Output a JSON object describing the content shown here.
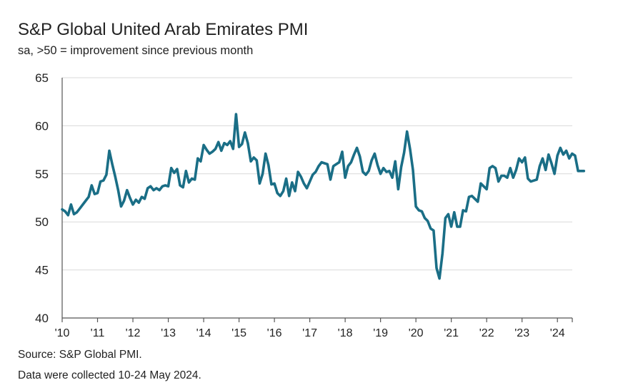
{
  "title": "S&P Global United Arab Emirates PMI",
  "subtitle": "sa, >50 = improvement since previous month",
  "footer": {
    "source": "Source: S&P Global PMI.",
    "note": "Data were collected 10-24 May 2024."
  },
  "colors": {
    "line": "#1a6e86",
    "grid": "#d9d9d9",
    "axis": "#555555"
  },
  "chart_data": {
    "type": "line",
    "title": "S&P Global United Arab Emirates PMI",
    "subtitle": "sa, >50 = improvement since previous month",
    "xlabel": "",
    "ylabel": "",
    "ylim": [
      40,
      65
    ],
    "yticks": [
      40,
      45,
      50,
      55,
      60,
      65
    ],
    "xticks": [
      {
        "label": "'10",
        "x": 2010
      },
      {
        "label": "'11",
        "x": 2011
      },
      {
        "label": "'12",
        "x": 2012
      },
      {
        "label": "'13",
        "x": 2013
      },
      {
        "label": "'14",
        "x": 2014
      },
      {
        "label": "'15",
        "x": 2015
      },
      {
        "label": "'16",
        "x": 2016
      },
      {
        "label": "'17",
        "x": 2017
      },
      {
        "label": "'18",
        "x": 2018
      },
      {
        "label": "'19",
        "x": 2019
      },
      {
        "label": "'20",
        "x": 2020
      },
      {
        "label": "'21",
        "x": 2021
      },
      {
        "label": "'22",
        "x": 2022
      },
      {
        "label": "'23",
        "x": 2023
      },
      {
        "label": "'24",
        "x": 2024
      }
    ],
    "xlim": [
      2010,
      2024.42
    ],
    "grid": true,
    "series": [
      {
        "name": "UAE PMI",
        "start": 2010.0,
        "step": 0.08333,
        "values": [
          51.3,
          51.1,
          50.7,
          51.8,
          50.8,
          51.0,
          51.4,
          51.8,
          52.2,
          52.6,
          53.8,
          52.9,
          53.0,
          54.2,
          54.3,
          54.9,
          57.4,
          56.0,
          54.7,
          53.3,
          51.6,
          52.2,
          53.3,
          52.5,
          51.8,
          52.3,
          52.0,
          52.6,
          52.4,
          53.5,
          53.7,
          53.3,
          53.5,
          53.3,
          53.7,
          53.8,
          53.7,
          55.6,
          55.1,
          55.5,
          53.8,
          53.6,
          55.3,
          54.1,
          54.5,
          54.4,
          56.6,
          56.3,
          58.0,
          57.5,
          57.1,
          57.3,
          57.6,
          58.3,
          57.4,
          58.2,
          58.0,
          58.4,
          57.6,
          61.2,
          57.8,
          58.1,
          59.3,
          58.2,
          56.3,
          56.7,
          56.4,
          54.0,
          55.0,
          57.1,
          55.9,
          53.9,
          54.0,
          53.0,
          52.7,
          53.2,
          54.5,
          52.7,
          54.1,
          53.2,
          55.2,
          54.7,
          54.0,
          53.5,
          54.2,
          54.9,
          55.2,
          55.8,
          56.2,
          56.1,
          56.0,
          54.4,
          55.8,
          56.0,
          56.2,
          57.3,
          54.6,
          55.8,
          56.2,
          57.0,
          57.7,
          56.8,
          55.2,
          54.9,
          55.3,
          56.4,
          57.1,
          55.9,
          55.0,
          55.6,
          55.2,
          55.3,
          54.6,
          56.3,
          53.4,
          55.7,
          57.2,
          59.4,
          57.6,
          55.4,
          51.6,
          51.2,
          51.1,
          50.4,
          50.1,
          49.3,
          49.1,
          45.2,
          44.1,
          46.7,
          50.4,
          50.8,
          49.5,
          51.0,
          49.5,
          49.5,
          51.2,
          51.1,
          52.6,
          52.7,
          52.4,
          52.1,
          54.0,
          53.7,
          53.4,
          55.6,
          55.8,
          55.6,
          54.2,
          54.8,
          54.8,
          54.6,
          55.6,
          54.6,
          55.4,
          56.6,
          56.2,
          56.7,
          54.5,
          54.2,
          54.3,
          54.4,
          55.8,
          56.6,
          55.4,
          57.0,
          56.1,
          55.0,
          56.9,
          57.7,
          57.0,
          57.4,
          56.6,
          57.1,
          56.9,
          55.3,
          55.3,
          55.3
        ]
      }
    ]
  }
}
